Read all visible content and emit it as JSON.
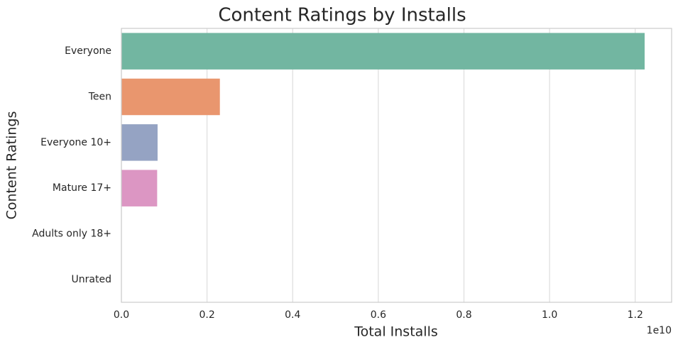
{
  "chart_data": {
    "type": "bar",
    "orientation": "horizontal",
    "title": "Content Ratings by Installs",
    "x_label": "Total Installs",
    "y_label": "Content Ratings",
    "x_offset_label": "1e10",
    "categories": [
      "Everyone",
      "Teen",
      "Everyone 10+",
      "Mature 17+",
      "Adults only 18+",
      "Unrated"
    ],
    "values": [
      12220000000,
      2300000000,
      845000000,
      835000000,
      2000000,
      50000
    ],
    "colors": [
      "#72b6a1",
      "#e9966e",
      "#95a3c3",
      "#dc96c3",
      "#b0cc7c",
      "#e8cd55"
    ],
    "xlim": [
      0,
      12850000000
    ],
    "xticks": [
      {
        "value": 0,
        "label": "0.0"
      },
      {
        "value": 2000000000,
        "label": "0.2"
      },
      {
        "value": 4000000000,
        "label": "0.4"
      },
      {
        "value": 6000000000,
        "label": "0.6"
      },
      {
        "value": 8000000000,
        "label": "0.8"
      },
      {
        "value": 10000000000,
        "label": "1.0"
      },
      {
        "value": 12000000000,
        "label": "1.2"
      }
    ],
    "grid": true
  }
}
